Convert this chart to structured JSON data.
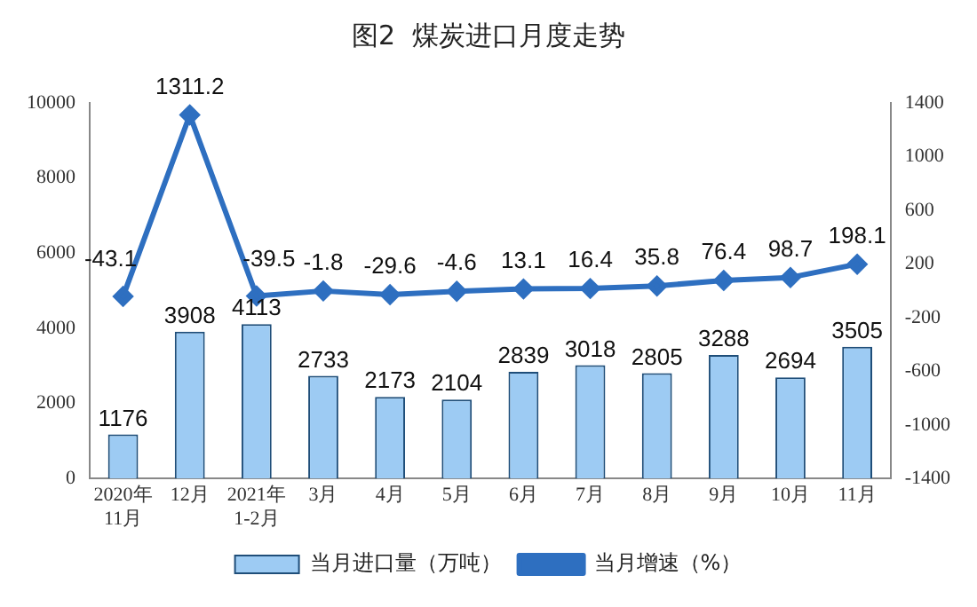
{
  "chart_data": {
    "type": "bar",
    "title": "图2  煤炭进口月度走势",
    "categories": [
      "2020年\n11月",
      "12月",
      "2021年\n1-2月",
      "3月",
      "4月",
      "5月",
      "6月",
      "7月",
      "8月",
      "9月",
      "10月",
      "11月"
    ],
    "series": [
      {
        "name": "当月进口量（万吨）",
        "color": "#9dcbf3",
        "values": [
          1176,
          3908,
          4113,
          2733,
          2173,
          2104,
          2839,
          3018,
          2805,
          3288,
          2694,
          3505
        ]
      },
      {
        "name": "当月增速（%）",
        "type": "line",
        "axis": "y2",
        "color": "#2e6fc0",
        "marker": "diamond",
        "values": [
          -43.1,
          1311.2,
          -39.5,
          -1.8,
          -29.6,
          -4.6,
          13.1,
          16.4,
          35.8,
          76.4,
          98.7,
          198.1
        ]
      }
    ],
    "ylim": [
      0,
      10000
    ],
    "yticks": [
      0,
      2000,
      4000,
      6000,
      8000,
      10000
    ],
    "y2lim": [
      -1400,
      1400
    ],
    "y2ticks": [
      -1400,
      -1000,
      -600,
      -200,
      200,
      600,
      1000,
      1400
    ],
    "data_labels": true,
    "grid": false,
    "legend": "bottom"
  }
}
